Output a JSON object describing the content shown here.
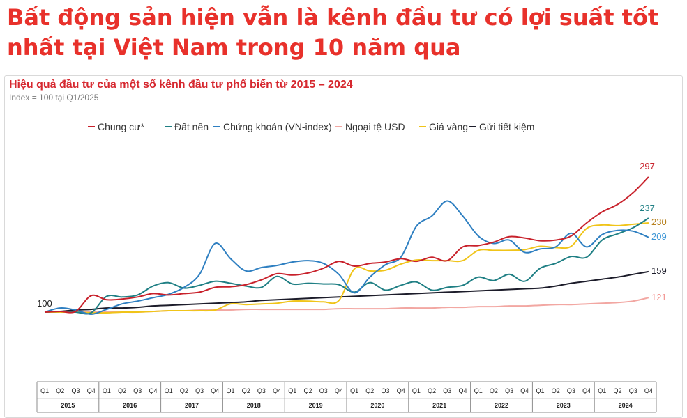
{
  "headline": "Bất động sản hiện vẫn là kênh đầu tư có lợi suất tốt nhất tại Việt Nam trong 10 năm qua",
  "chart_data": {
    "type": "line",
    "title": "Hiệu quả đầu tư của một số kênh đầu tư phổ biến từ 2015 – 2024",
    "subtitle": "Index = 100 tại Q1/2025",
    "start_label": "100",
    "legend_position": "top",
    "grid": false,
    "quarters": [
      "Q1",
      "Q2",
      "Q3",
      "Q4"
    ],
    "years": [
      "2015",
      "2016",
      "2017",
      "2018",
      "2019",
      "2020",
      "2021",
      "2022",
      "2023",
      "2024"
    ],
    "ylim": [
      80,
      320
    ],
    "series": [
      {
        "name": "Chung cư*",
        "color": "#c8212b",
        "label_color": "#c8212b",
        "end_label": "297",
        "values": [
          100,
          101,
          101,
          124,
          118,
          119,
          122,
          127,
          125,
          127,
          129,
          136,
          137,
          140,
          147,
          156,
          154,
          157,
          164,
          174,
          167,
          171,
          173,
          178,
          174,
          180,
          175,
          195,
          197,
          202,
          210,
          208,
          204,
          205,
          211,
          230,
          246,
          257,
          274,
          297
        ]
      },
      {
        "name": "Đất nền",
        "color": "#1f7f84",
        "label_color": "#1f7f84",
        "end_label": "237",
        "values": [
          100,
          101,
          100,
          99,
          123,
          122,
          125,
          138,
          143,
          135,
          139,
          145,
          142,
          138,
          136,
          152,
          141,
          142,
          141,
          140,
          129,
          143,
          132,
          139,
          144,
          132,
          136,
          139,
          151,
          146,
          155,
          145,
          164,
          171,
          181,
          180,
          205,
          214,
          223,
          237
        ]
      },
      {
        "name": "Chứng khoán (VN-index)",
        "color": "#2e7fc1",
        "label_color": "#3d96d6",
        "end_label": "209",
        "values": [
          100,
          106,
          103,
          97,
          104,
          112,
          116,
          121,
          126,
          136,
          155,
          200,
          178,
          160,
          165,
          168,
          173,
          175,
          171,
          155,
          128,
          151,
          169,
          180,
          225,
          240,
          262,
          240,
          211,
          200,
          205,
          187,
          192,
          195,
          215,
          195,
          213,
          219,
          218,
          209
        ]
      },
      {
        "name": "Ngoại tệ USD",
        "color": "#f2a7a2",
        "label_color": "#f29490",
        "end_label": "121",
        "values": [
          100,
          100,
          100,
          100,
          100,
          100,
          100,
          101,
          102,
          102,
          103,
          103,
          103,
          104,
          104,
          104,
          104,
          104,
          104,
          105,
          105,
          105,
          105,
          106,
          106,
          106,
          107,
          107,
          108,
          108,
          109,
          109,
          110,
          111,
          111,
          112,
          113,
          114,
          116,
          121
        ]
      },
      {
        "name": "Giá vàng",
        "color": "#f0c419",
        "label_color": "#b7811e",
        "end_label": "230",
        "values": [
          100,
          100,
          100,
          99,
          99,
          100,
          100,
          101,
          102,
          102,
          102,
          103,
          112,
          111,
          112,
          113,
          116,
          116,
          115,
          117,
          163,
          160,
          161,
          170,
          176,
          175,
          175,
          175,
          190,
          190,
          190,
          191,
          196,
          194,
          196,
          222,
          227,
          226,
          228,
          230
        ]
      },
      {
        "name": "Gửi tiết kiệm",
        "color": "#1c1c2a",
        "label_color": "#1c1c2a",
        "end_label": "159",
        "values": [
          100,
          101,
          103,
          104,
          106,
          106,
          107,
          109,
          110,
          111,
          112,
          113,
          114,
          115,
          117,
          118,
          119,
          120,
          121,
          122,
          123,
          124,
          125,
          126,
          127,
          128,
          129,
          130,
          131,
          132,
          133,
          134,
          135,
          138,
          142,
          145,
          148,
          151,
          155,
          159
        ]
      }
    ]
  }
}
